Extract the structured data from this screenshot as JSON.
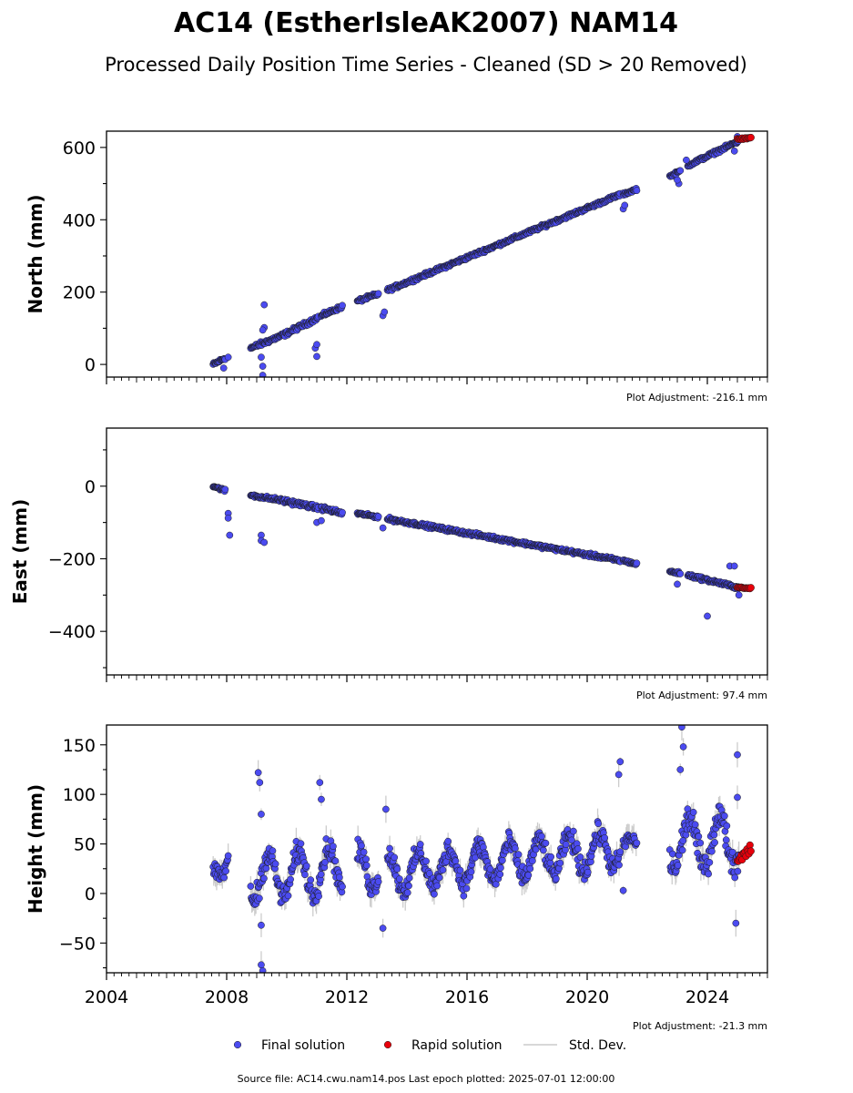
{
  "title": "AC14 (EstherIsleAK2007) NAM14",
  "subtitle": "Processed Daily Position Time Series - Cleaned (SD > 20 Removed)",
  "footer": "Source file: AC14.cwu.nam14.pos  Last epoch plotted: 2025-07-01 12:00:00",
  "colors": {
    "final": "#4b4bf0",
    "rapid": "#e8000b",
    "stddev": "#cccccc",
    "edge": "#1a1a1a"
  },
  "legend": {
    "final": "Final solution",
    "rapid": "Rapid solution",
    "stddev": "Std. Dev."
  },
  "chart_data": [
    {
      "type": "scatter",
      "ylabel": "North (mm)",
      "adjustment": "Plot Adjustment: -216.1 mm",
      "xlim": [
        2004.0,
        2026.0
      ],
      "ylim": [
        -35,
        645
      ],
      "yticks": [
        0,
        200,
        400,
        600
      ],
      "ytick_labels": [
        "0",
        "200",
        "400",
        "600"
      ],
      "segments": [
        {
          "x0": 2007.55,
          "x1": 2007.95,
          "y0": 0,
          "y1": 18,
          "noise": 4
        },
        {
          "x0": 2008.8,
          "x1": 2009.9,
          "y0": 45,
          "y1": 82,
          "noise": 5
        },
        {
          "x0": 2009.9,
          "x1": 2011.05,
          "y0": 82,
          "y1": 130,
          "noise": 5
        },
        {
          "x0": 2011.15,
          "x1": 2011.85,
          "y0": 135,
          "y1": 160,
          "noise": 4
        },
        {
          "x0": 2012.35,
          "x1": 2013.05,
          "y0": 175,
          "y1": 195,
          "noise": 4
        },
        {
          "x0": 2013.35,
          "x1": 2021.1,
          "y0": 205,
          "y1": 470,
          "noise": 4
        },
        {
          "x0": 2021.2,
          "x1": 2021.65,
          "y0": 470,
          "y1": 485,
          "noise": 3
        },
        {
          "x0": 2022.75,
          "x1": 2023.1,
          "y0": 520,
          "y1": 535,
          "noise": 3
        },
        {
          "x0": 2023.35,
          "x1": 2025.05,
          "y0": 550,
          "y1": 618,
          "noise": 4
        }
      ],
      "outliers": [
        {
          "x": 2007.9,
          "y": -10
        },
        {
          "x": 2008.05,
          "y": 20
        },
        {
          "x": 2009.25,
          "y": 165
        },
        {
          "x": 2009.25,
          "y": 102
        },
        {
          "x": 2009.2,
          "y": 95
        },
        {
          "x": 2009.2,
          "y": -30
        },
        {
          "x": 2009.2,
          "y": -5
        },
        {
          "x": 2009.15,
          "y": 20
        },
        {
          "x": 2010.95,
          "y": 45
        },
        {
          "x": 2011.0,
          "y": 55
        },
        {
          "x": 2011.0,
          "y": 22
        },
        {
          "x": 2013.2,
          "y": 135
        },
        {
          "x": 2013.25,
          "y": 145
        },
        {
          "x": 2021.2,
          "y": 430
        },
        {
          "x": 2021.25,
          "y": 440
        },
        {
          "x": 2023.05,
          "y": 500
        },
        {
          "x": 2023.0,
          "y": 510
        },
        {
          "x": 2023.3,
          "y": 565
        },
        {
          "x": 2024.9,
          "y": 590
        },
        {
          "x": 2025.0,
          "y": 630
        }
      ],
      "rapid": {
        "x0": 2025.0,
        "x1": 2025.45,
        "y0": 622,
        "y1": 628,
        "noise": 2
      }
    },
    {
      "type": "scatter",
      "ylabel": "East (mm)",
      "adjustment": "Plot Adjustment: 97.4 mm",
      "xlim": [
        2004.0,
        2026.0
      ],
      "ylim": [
        -520,
        160
      ],
      "yticks": [
        -400,
        -200,
        0
      ],
      "ytick_labels": [
        "−400",
        "−200",
        "0"
      ],
      "segments": [
        {
          "x0": 2007.55,
          "x1": 2007.95,
          "y0": 0,
          "y1": -12,
          "noise": 3
        },
        {
          "x0": 2008.8,
          "x1": 2009.9,
          "y0": -25,
          "y1": -40,
          "noise": 4
        },
        {
          "x0": 2009.9,
          "x1": 2011.05,
          "y0": -40,
          "y1": -60,
          "noise": 5
        },
        {
          "x0": 2011.15,
          "x1": 2011.85,
          "y0": -60,
          "y1": -75,
          "noise": 5
        },
        {
          "x0": 2012.35,
          "x1": 2013.05,
          "y0": -75,
          "y1": -85,
          "noise": 3
        },
        {
          "x0": 2013.35,
          "x1": 2021.1,
          "y0": -90,
          "y1": -205,
          "noise": 4
        },
        {
          "x0": 2021.2,
          "x1": 2021.65,
          "y0": -205,
          "y1": -215,
          "noise": 3
        },
        {
          "x0": 2022.75,
          "x1": 2023.1,
          "y0": -235,
          "y1": -240,
          "noise": 3
        },
        {
          "x0": 2023.35,
          "x1": 2025.05,
          "y0": -245,
          "y1": -280,
          "noise": 4
        }
      ],
      "outliers": [
        {
          "x": 2008.05,
          "y": -75
        },
        {
          "x": 2008.05,
          "y": -88
        },
        {
          "x": 2008.1,
          "y": -135
        },
        {
          "x": 2009.15,
          "y": -135
        },
        {
          "x": 2009.15,
          "y": -150
        },
        {
          "x": 2009.25,
          "y": -155
        },
        {
          "x": 2011.0,
          "y": -100
        },
        {
          "x": 2011.15,
          "y": -95
        },
        {
          "x": 2013.2,
          "y": -115
        },
        {
          "x": 2023.0,
          "y": -270
        },
        {
          "x": 2024.0,
          "y": -358
        },
        {
          "x": 2024.75,
          "y": -220
        },
        {
          "x": 2024.9,
          "y": -220
        },
        {
          "x": 2025.05,
          "y": -300
        }
      ],
      "rapid": {
        "x0": 2025.0,
        "x1": 2025.45,
        "y0": -278,
        "y1": -282,
        "noise": 2
      }
    },
    {
      "type": "scatter",
      "ylabel": "Height (mm)",
      "adjustment": "Plot Adjustment: -21.3 mm",
      "xlim": [
        2004.0,
        2026.0
      ],
      "ylim": [
        -80,
        170
      ],
      "yticks": [
        -50,
        0,
        50,
        100,
        150
      ],
      "ytick_labels": [
        "−50",
        "0",
        "50",
        "100",
        "150"
      ],
      "xticks": [
        2004,
        2008,
        2012,
        2016,
        2020,
        2024
      ],
      "xtick_labels": [
        "2004",
        "2008",
        "2012",
        "2016",
        "2020",
        "2024"
      ],
      "segments": [
        {
          "x0": 2007.55,
          "x1": 2008.05,
          "base": 15,
          "trend": 30,
          "amp": 15,
          "noise": 6
        },
        {
          "x0": 2008.8,
          "x1": 2011.85,
          "base": 15,
          "trend": 10,
          "amp": 22,
          "noise": 10
        },
        {
          "x0": 2012.35,
          "x1": 2013.05,
          "base": 15,
          "trend": 20,
          "amp": 25,
          "noise": 10
        },
        {
          "x0": 2013.35,
          "x1": 2021.1,
          "base": 20,
          "trend": 25,
          "amp": 18,
          "noise": 9
        },
        {
          "x0": 2021.2,
          "x1": 2021.65,
          "base": 45,
          "trend": 5,
          "amp": 8,
          "noise": 6
        },
        {
          "x0": 2022.75,
          "x1": 2025.05,
          "base": 50,
          "trend": 5,
          "amp": 25,
          "noise": 12
        }
      ],
      "outliers": [
        {
          "x": 2009.05,
          "y": 122
        },
        {
          "x": 2009.1,
          "y": 112
        },
        {
          "x": 2009.15,
          "y": 80
        },
        {
          "x": 2009.15,
          "y": -32
        },
        {
          "x": 2009.15,
          "y": -72
        },
        {
          "x": 2009.2,
          "y": -78
        },
        {
          "x": 2011.1,
          "y": 112
        },
        {
          "x": 2011.15,
          "y": 95
        },
        {
          "x": 2013.2,
          "y": -35
        },
        {
          "x": 2013.3,
          "y": 85
        },
        {
          "x": 2021.1,
          "y": 133
        },
        {
          "x": 2021.05,
          "y": 120
        },
        {
          "x": 2023.15,
          "y": 168
        },
        {
          "x": 2023.2,
          "y": 148
        },
        {
          "x": 2023.1,
          "y": 125
        },
        {
          "x": 2025.0,
          "y": 140
        },
        {
          "x": 2025.0,
          "y": 97
        },
        {
          "x": 2024.95,
          "y": -30
        },
        {
          "x": 2021.2,
          "y": 3
        }
      ],
      "rapid": {
        "x0": 2025.0,
        "x1": 2025.45,
        "y0": 32,
        "y1": 45,
        "noise": 5
      }
    }
  ]
}
